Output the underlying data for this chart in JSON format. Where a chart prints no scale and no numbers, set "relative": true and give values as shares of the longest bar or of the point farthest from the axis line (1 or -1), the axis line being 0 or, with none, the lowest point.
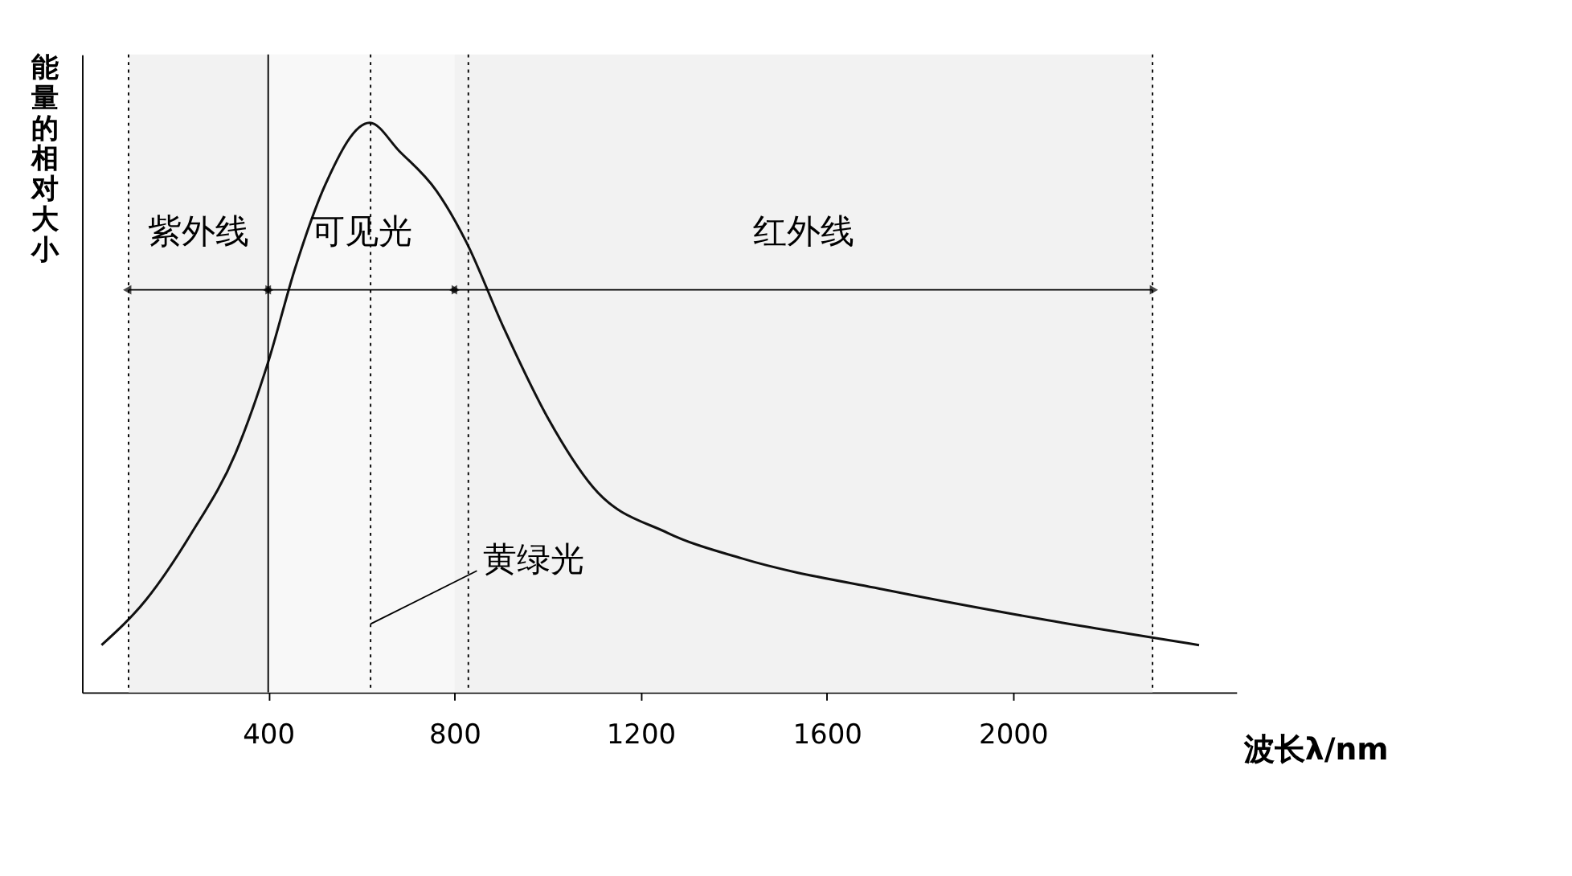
{
  "chart_data": {
    "type": "line",
    "relative": true,
    "ylabel": "能量的相对大小",
    "xlabel": "波长λ/nm",
    "x": [
      42,
      138,
      234,
      330,
      400,
      458,
      522,
      618,
      682,
      762,
      826,
      906,
      1002,
      1098,
      1258,
      1418,
      1738,
      2058,
      2400
    ],
    "series": [
      {
        "color": "#111111",
        "values": [
          0.083,
          0.163,
          0.278,
          0.42,
          0.58,
          0.745,
          0.89,
          1.0,
          0.95,
          0.88,
          0.79,
          0.64,
          0.48,
          0.36,
          0.28,
          0.235,
          0.178,
          0.129,
          0.083
        ]
      }
    ],
    "xlim": [
      0,
      2480
    ],
    "xticks": [
      400,
      800,
      {
        "value": 1200,
        "label": "1200"
      },
      {
        "value": 1600,
        "label": "1600"
      },
      {
        "value": 2000,
        "label": "2000"
      }
    ],
    "grid": false,
    "marker": "none",
    "line_style": "solid",
    "ref_lines": [
      {
        "axis": "x",
        "value": 100,
        "line_style": "dotted"
      },
      {
        "axis": "x",
        "value": 400,
        "line_style": "solid"
      },
      {
        "axis": "x",
        "value": 620,
        "line_style": "dotted"
      },
      {
        "axis": "x",
        "value": 830,
        "line_style": "dotted"
      },
      {
        "axis": "x",
        "value": 2300,
        "line_style": "dotted"
      }
    ],
    "bands": [
      {
        "axis": "x",
        "from": 100,
        "to": 400,
        "label": "紫外线",
        "color": "#f2f2f2"
      },
      {
        "axis": "x",
        "from": 400,
        "to": 800,
        "label": "可见光",
        "color": "#f8f8f8"
      },
      {
        "axis": "x",
        "from": 800,
        "to": 2300,
        "label": "红外线",
        "color": "#f2f2f2"
      }
    ],
    "annotations": [
      {
        "text": "黄绿光",
        "x": 620,
        "y": 0.12
      }
    ]
  }
}
